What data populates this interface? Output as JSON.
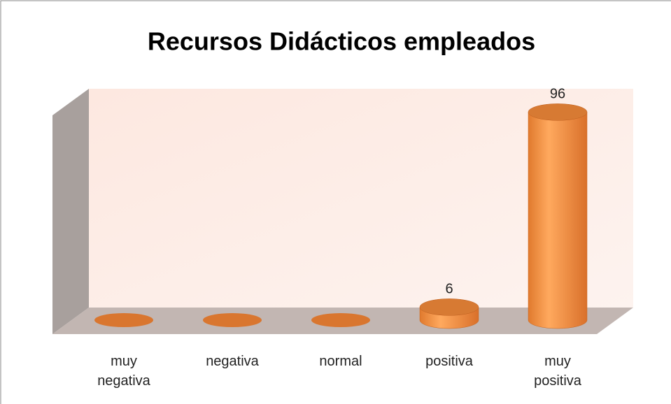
{
  "chart_data": {
    "type": "bar",
    "title": "Recursos Didácticos empleados",
    "categories": [
      "muy negativa",
      "negativa",
      "normal",
      "positiva",
      "muy positiva"
    ],
    "values": [
      0,
      0,
      0,
      6,
      96
    ],
    "color": "#f79646",
    "ylim": [
      0,
      100
    ]
  }
}
